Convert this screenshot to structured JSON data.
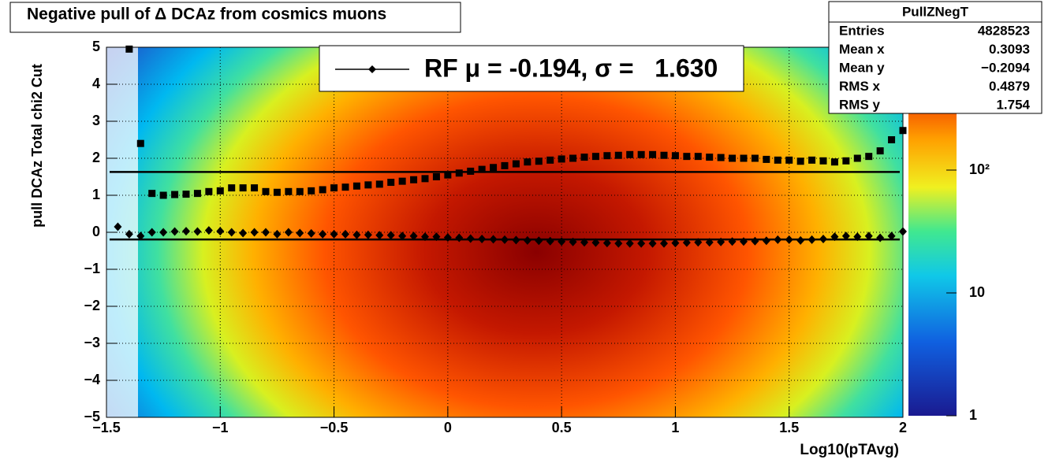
{
  "chart_data": {
    "type": "scatter",
    "title": "Negative pull of Δ DCAz from cosmics muons",
    "xlabel": "Log10(pTAvg)",
    "ylabel": "pull DCAz   Total chi2 Cut",
    "xlim": [
      -1.5,
      2
    ],
    "ylim": [
      -5,
      5
    ],
    "xticks": [
      {
        "value": -1.5,
        "label": "−1.5"
      },
      {
        "value": -1,
        "label": "−1"
      },
      {
        "value": -0.5,
        "label": "−0.5"
      },
      0,
      0.5,
      1,
      1.5,
      2
    ],
    "yticks": [
      {
        "value": -5,
        "label": "−5"
      },
      {
        "value": -4,
        "label": "−4"
      },
      {
        "value": -3,
        "label": "−3"
      },
      {
        "value": -2,
        "label": "−2"
      },
      {
        "value": -1,
        "label": "−1"
      },
      0,
      1,
      2,
      3,
      4,
      5
    ],
    "zlim": [
      1,
      1000
    ],
    "zlog": true,
    "zticks": [
      1,
      10,
      {
        "value": 100,
        "label": "10²"
      }
    ],
    "legend": "RF μ = -0.194, σ =   1.630",
    "hlines": [
      -0.194,
      1.63
    ],
    "series": [
      {
        "marker": "diamond",
        "color": "#000000",
        "x": [
          -1.45,
          -1.4,
          -1.35,
          -1.3,
          -1.25,
          -1.2,
          -1.15,
          -1.1,
          -1.05,
          -1.0,
          -0.95,
          -0.9,
          -0.85,
          -0.8,
          -0.75,
          -0.7,
          -0.65,
          -0.6,
          -0.55,
          -0.5,
          -0.45,
          -0.4,
          -0.35,
          -0.3,
          -0.25,
          -0.2,
          -0.15,
          -0.1,
          -0.05,
          0,
          0.05,
          0.1,
          0.15,
          0.2,
          0.25,
          0.3,
          0.35,
          0.4,
          0.45,
          0.5,
          0.55,
          0.6,
          0.65,
          0.7,
          0.75,
          0.8,
          0.85,
          0.9,
          0.95,
          1.0,
          1.05,
          1.1,
          1.15,
          1.2,
          1.25,
          1.3,
          1.35,
          1.4,
          1.45,
          1.5,
          1.55,
          1.6,
          1.65,
          1.7,
          1.75,
          1.8,
          1.85,
          1.9,
          1.95,
          2.0
        ],
        "values": [
          0.15,
          -0.05,
          -0.1,
          0.0,
          0.0,
          0.02,
          0.03,
          0.02,
          0.05,
          0.03,
          0.0,
          -0.02,
          0.0,
          0.0,
          -0.05,
          0.0,
          -0.02,
          -0.03,
          -0.05,
          -0.05,
          -0.05,
          -0.07,
          -0.07,
          -0.08,
          -0.08,
          -0.1,
          -0.1,
          -0.12,
          -0.12,
          -0.14,
          -0.15,
          -0.17,
          -0.18,
          -0.19,
          -0.2,
          -0.21,
          -0.22,
          -0.23,
          -0.24,
          -0.25,
          -0.26,
          -0.27,
          -0.28,
          -0.29,
          -0.3,
          -0.3,
          -0.3,
          -0.3,
          -0.3,
          -0.29,
          -0.28,
          -0.27,
          -0.27,
          -0.26,
          -0.25,
          -0.25,
          -0.24,
          -0.23,
          -0.2,
          -0.2,
          -0.22,
          -0.2,
          -0.18,
          -0.12,
          -0.1,
          -0.12,
          -0.1,
          -0.15,
          -0.1,
          0.02
        ]
      },
      {
        "marker": "square",
        "color": "#000000",
        "x": [
          -1.4,
          -1.35,
          -1.3,
          -1.25,
          -1.2,
          -1.15,
          -1.1,
          -1.05,
          -1.0,
          -0.95,
          -0.9,
          -0.85,
          -0.8,
          -0.75,
          -0.7,
          -0.65,
          -0.6,
          -0.55,
          -0.5,
          -0.45,
          -0.4,
          -0.35,
          -0.3,
          -0.25,
          -0.2,
          -0.15,
          -0.1,
          -0.05,
          0,
          0.05,
          0.1,
          0.15,
          0.2,
          0.25,
          0.3,
          0.35,
          0.4,
          0.45,
          0.5,
          0.55,
          0.6,
          0.65,
          0.7,
          0.75,
          0.8,
          0.85,
          0.9,
          0.95,
          1.0,
          1.05,
          1.1,
          1.15,
          1.2,
          1.25,
          1.3,
          1.35,
          1.4,
          1.45,
          1.5,
          1.55,
          1.6,
          1.65,
          1.7,
          1.75,
          1.8,
          1.85,
          1.9,
          1.95,
          2.0
        ],
        "values": [
          4.95,
          2.4,
          1.05,
          1.0,
          1.02,
          1.03,
          1.05,
          1.1,
          1.12,
          1.2,
          1.2,
          1.2,
          1.1,
          1.08,
          1.1,
          1.1,
          1.12,
          1.15,
          1.2,
          1.22,
          1.25,
          1.28,
          1.3,
          1.35,
          1.38,
          1.42,
          1.45,
          1.5,
          1.55,
          1.6,
          1.65,
          1.7,
          1.75,
          1.8,
          1.85,
          1.9,
          1.92,
          1.95,
          1.98,
          2.0,
          2.03,
          2.05,
          2.07,
          2.08,
          2.1,
          2.1,
          2.1,
          2.08,
          2.07,
          2.05,
          2.05,
          2.03,
          2.02,
          2.0,
          2.0,
          2.0,
          1.97,
          1.95,
          1.95,
          1.92,
          1.95,
          1.93,
          1.9,
          1.93,
          2.0,
          2.05,
          2.2,
          2.5,
          2.75
        ]
      }
    ]
  },
  "stats": {
    "title": "PullZNegT",
    "rows": [
      [
        "Entries",
        "4828523"
      ],
      [
        "Mean x",
        "0.3093"
      ],
      [
        "Mean y",
        "−0.2094"
      ],
      [
        "RMS x",
        "0.4879"
      ],
      [
        "RMS y",
        "1.754"
      ]
    ]
  }
}
